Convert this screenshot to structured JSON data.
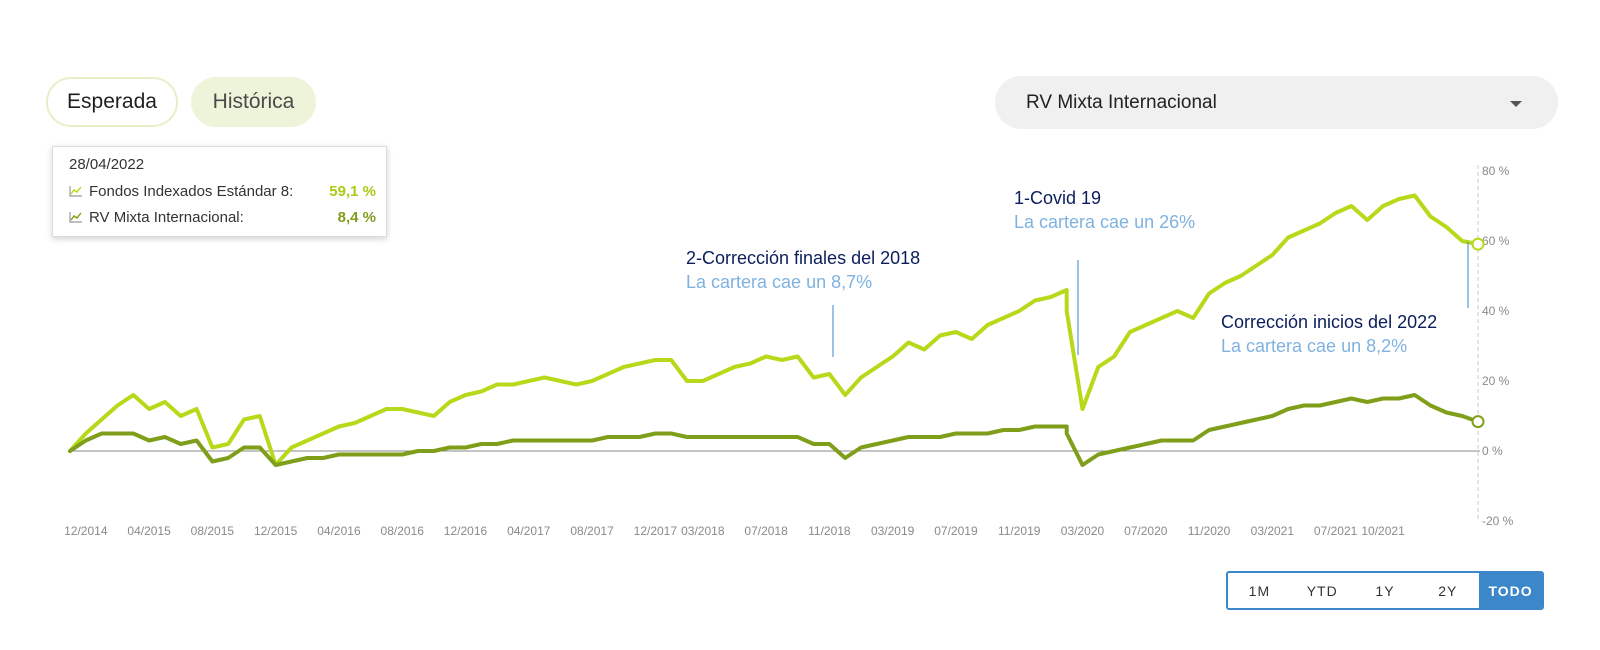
{
  "tabs": [
    {
      "label": "Esperada"
    },
    {
      "label": "Histórica"
    }
  ],
  "selector": {
    "value": "RV Mixta Internacional"
  },
  "tooltip": {
    "date": "28/04/2022",
    "rows": [
      {
        "label": "Fondos Indexados Estándar 8:",
        "value": "59,1 %",
        "color": "#b6d91a"
      },
      {
        "label": "RV Mixta Internacional:",
        "value": "8,4 %",
        "color": "#7f9e1a"
      }
    ]
  },
  "range_buttons": [
    "1M",
    "YTD",
    "1Y",
    "2Y",
    "TODO"
  ],
  "active_range": "TODO",
  "chart_data": {
    "type": "line",
    "x_ticks": [
      "12/2014",
      "04/2015",
      "08/2015",
      "12/2015",
      "04/2016",
      "08/2016",
      "12/2016",
      "04/2017",
      "08/2017",
      "12/2017",
      "03/2018",
      "07/2018",
      "11/2018",
      "03/2019",
      "07/2019",
      "11/2019",
      "03/2020",
      "07/2020",
      "11/2020",
      "03/2021",
      "07/2021",
      "10/2021"
    ],
    "y_ticks": [
      "80 %",
      "60 %",
      "40 %",
      "20 %",
      "0 %",
      "-20 %"
    ],
    "ylim": [
      -20,
      80
    ],
    "series": [
      {
        "name": "Fondos Indexados Estándar 8",
        "color": "#b6d91a",
        "values": [
          [
            "2014-11",
            0
          ],
          [
            "2014-12",
            5
          ],
          [
            "2015-01",
            9
          ],
          [
            "2015-02",
            13
          ],
          [
            "2015-03",
            16
          ],
          [
            "2015-04",
            12
          ],
          [
            "2015-05",
            14
          ],
          [
            "2015-06",
            10
          ],
          [
            "2015-07",
            12
          ],
          [
            "2015-08",
            1
          ],
          [
            "2015-09",
            2
          ],
          [
            "2015-10",
            9
          ],
          [
            "2015-11",
            10
          ],
          [
            "2015-12",
            -4
          ],
          [
            "2016-01",
            1
          ],
          [
            "2016-02",
            3
          ],
          [
            "2016-03",
            5
          ],
          [
            "2016-04",
            7
          ],
          [
            "2016-05",
            8
          ],
          [
            "2016-06",
            10
          ],
          [
            "2016-07",
            12
          ],
          [
            "2016-08",
            12
          ],
          [
            "2016-09",
            11
          ],
          [
            "2016-10",
            10
          ],
          [
            "2016-11",
            14
          ],
          [
            "2016-12",
            16
          ],
          [
            "2017-01",
            17
          ],
          [
            "2017-02",
            19
          ],
          [
            "2017-03",
            19
          ],
          [
            "2017-04",
            20
          ],
          [
            "2017-05",
            21
          ],
          [
            "2017-06",
            20
          ],
          [
            "2017-07",
            19
          ],
          [
            "2017-08",
            20
          ],
          [
            "2017-09",
            22
          ],
          [
            "2017-10",
            24
          ],
          [
            "2017-11",
            25
          ],
          [
            "2017-12",
            26
          ],
          [
            "2018-01",
            26
          ],
          [
            "2018-02",
            20
          ],
          [
            "2018-03",
            20
          ],
          [
            "2018-04",
            22
          ],
          [
            "2018-05",
            24
          ],
          [
            "2018-06",
            25
          ],
          [
            "2018-07",
            27
          ],
          [
            "2018-08",
            26
          ],
          [
            "2018-09",
            27
          ],
          [
            "2018-10",
            21
          ],
          [
            "2018-11",
            22
          ],
          [
            "2018-12",
            16
          ],
          [
            "2019-01",
            21
          ],
          [
            "2019-02",
            24
          ],
          [
            "2019-03",
            27
          ],
          [
            "2019-04",
            31
          ],
          [
            "2019-05",
            29
          ],
          [
            "2019-06",
            33
          ],
          [
            "2019-07",
            34
          ],
          [
            "2019-08",
            32
          ],
          [
            "2019-09",
            36
          ],
          [
            "2019-10",
            38
          ],
          [
            "2019-11",
            40
          ],
          [
            "2019-12",
            43
          ],
          [
            "2020-01",
            44
          ],
          [
            "2020-02",
            46
          ],
          [
            "2020-02",
            40
          ],
          [
            "2020-03",
            12
          ],
          [
            "2020-04",
            24
          ],
          [
            "2020-05",
            27
          ],
          [
            "2020-06",
            34
          ],
          [
            "2020-07",
            36
          ],
          [
            "2020-08",
            38
          ],
          [
            "2020-09",
            40
          ],
          [
            "2020-10",
            38
          ],
          [
            "2020-11",
            45
          ],
          [
            "2020-12",
            48
          ],
          [
            "2021-01",
            50
          ],
          [
            "2021-02",
            53
          ],
          [
            "2021-03",
            56
          ],
          [
            "2021-04",
            61
          ],
          [
            "2021-05",
            63
          ],
          [
            "2021-06",
            65
          ],
          [
            "2021-07",
            68
          ],
          [
            "2021-08",
            70
          ],
          [
            "2021-09",
            66
          ],
          [
            "2021-10",
            70
          ],
          [
            "2021-11",
            72
          ],
          [
            "2021-12",
            73
          ],
          [
            "2022-01",
            67
          ],
          [
            "2022-02",
            64
          ],
          [
            "2022-03",
            60
          ],
          [
            "2022-04",
            59.1
          ]
        ]
      },
      {
        "name": "RV Mixta Internacional",
        "color": "#7f9e1a",
        "values": [
          [
            "2014-11",
            0
          ],
          [
            "2014-12",
            3
          ],
          [
            "2015-01",
            5
          ],
          [
            "2015-02",
            5
          ],
          [
            "2015-03",
            5
          ],
          [
            "2015-04",
            3
          ],
          [
            "2015-05",
            4
          ],
          [
            "2015-06",
            2
          ],
          [
            "2015-07",
            3
          ],
          [
            "2015-08",
            -3
          ],
          [
            "2015-09",
            -2
          ],
          [
            "2015-10",
            1
          ],
          [
            "2015-11",
            1
          ],
          [
            "2015-12",
            -4
          ],
          [
            "2016-01",
            -3
          ],
          [
            "2016-02",
            -2
          ],
          [
            "2016-03",
            -2
          ],
          [
            "2016-04",
            -1
          ],
          [
            "2016-05",
            -1
          ],
          [
            "2016-06",
            -1
          ],
          [
            "2016-07",
            -1
          ],
          [
            "2016-08",
            -1
          ],
          [
            "2016-09",
            0
          ],
          [
            "2016-10",
            0
          ],
          [
            "2016-11",
            1
          ],
          [
            "2016-12",
            1
          ],
          [
            "2017-01",
            2
          ],
          [
            "2017-02",
            2
          ],
          [
            "2017-03",
            3
          ],
          [
            "2017-04",
            3
          ],
          [
            "2017-05",
            3
          ],
          [
            "2017-06",
            3
          ],
          [
            "2017-07",
            3
          ],
          [
            "2017-08",
            3
          ],
          [
            "2017-09",
            4
          ],
          [
            "2017-10",
            4
          ],
          [
            "2017-11",
            4
          ],
          [
            "2017-12",
            5
          ],
          [
            "2018-01",
            5
          ],
          [
            "2018-02",
            4
          ],
          [
            "2018-03",
            4
          ],
          [
            "2018-04",
            4
          ],
          [
            "2018-05",
            4
          ],
          [
            "2018-06",
            4
          ],
          [
            "2018-07",
            4
          ],
          [
            "2018-08",
            4
          ],
          [
            "2018-09",
            4
          ],
          [
            "2018-10",
            2
          ],
          [
            "2018-11",
            2
          ],
          [
            "2018-12",
            -2
          ],
          [
            "2019-01",
            1
          ],
          [
            "2019-02",
            2
          ],
          [
            "2019-03",
            3
          ],
          [
            "2019-04",
            4
          ],
          [
            "2019-05",
            4
          ],
          [
            "2019-06",
            4
          ],
          [
            "2019-07",
            5
          ],
          [
            "2019-08",
            5
          ],
          [
            "2019-09",
            5
          ],
          [
            "2019-10",
            6
          ],
          [
            "2019-11",
            6
          ],
          [
            "2019-12",
            7
          ],
          [
            "2020-01",
            7
          ],
          [
            "2020-02",
            7
          ],
          [
            "2020-02",
            5
          ],
          [
            "2020-03",
            -4
          ],
          [
            "2020-04",
            -1
          ],
          [
            "2020-05",
            0
          ],
          [
            "2020-06",
            1
          ],
          [
            "2020-07",
            2
          ],
          [
            "2020-08",
            3
          ],
          [
            "2020-09",
            3
          ],
          [
            "2020-10",
            3
          ],
          [
            "2020-11",
            6
          ],
          [
            "2020-12",
            7
          ],
          [
            "2021-01",
            8
          ],
          [
            "2021-02",
            9
          ],
          [
            "2021-03",
            10
          ],
          [
            "2021-04",
            12
          ],
          [
            "2021-05",
            13
          ],
          [
            "2021-06",
            13
          ],
          [
            "2021-07",
            14
          ],
          [
            "2021-08",
            15
          ],
          [
            "2021-09",
            14
          ],
          [
            "2021-10",
            15
          ],
          [
            "2021-11",
            15
          ],
          [
            "2021-12",
            16
          ],
          [
            "2022-01",
            13
          ],
          [
            "2022-02",
            11
          ],
          [
            "2022-03",
            10
          ],
          [
            "2022-04",
            8.4
          ]
        ]
      }
    ],
    "annotations": [
      {
        "title": "2-Corrección finales del 2018",
        "subtitle": "La cartera cae un 8,7%",
        "x": "2018-12"
      },
      {
        "title": "1-Covid 19",
        "subtitle": "La cartera cae un 26%",
        "x": "2020-03"
      },
      {
        "title": "Corrección inicios del 2022",
        "subtitle": "La cartera cae un 8,2%",
        "x": "2022-04"
      }
    ],
    "title_color": "#0b1e5b",
    "subtitle_color": "#7fb2e0",
    "grid": false,
    "zero_line": true
  }
}
